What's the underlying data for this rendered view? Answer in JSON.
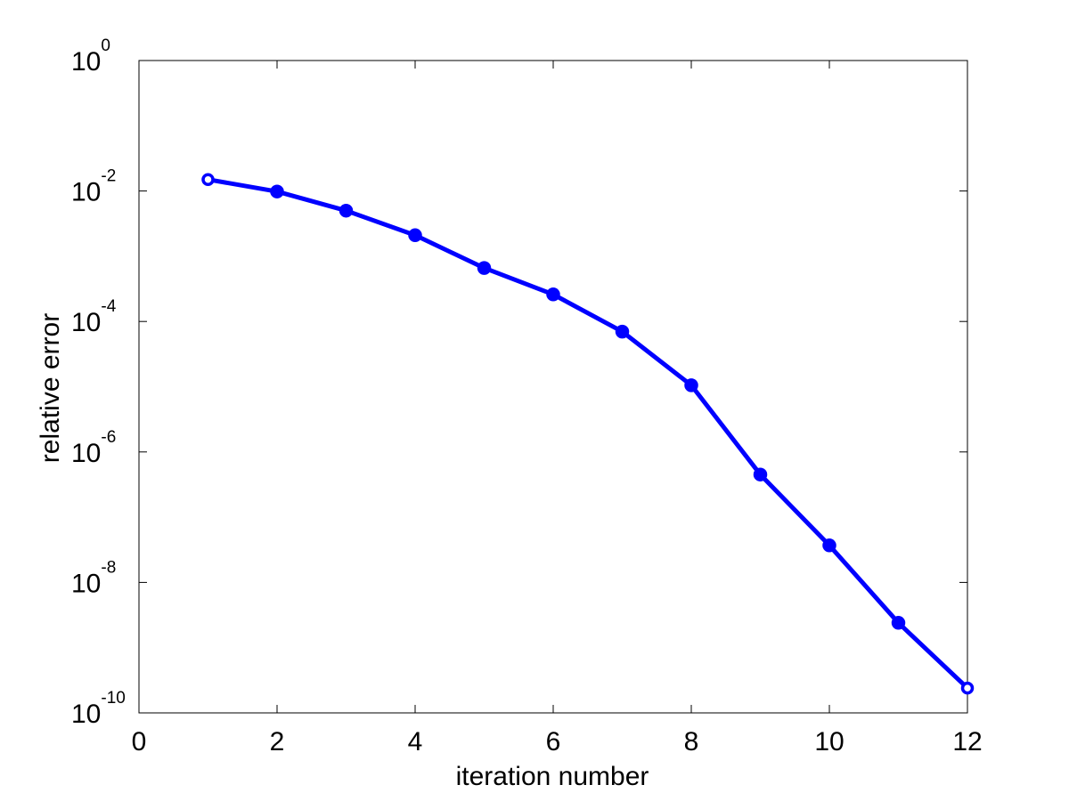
{
  "chart_data": {
    "type": "line",
    "title": "",
    "xlabel": "iteration number",
    "ylabel": "relative error",
    "xlim": [
      0,
      12
    ],
    "ylim": [
      1e-10,
      1
    ],
    "yscale": "log",
    "grid": false,
    "x_ticks": [
      "0",
      "2",
      "4",
      "6",
      "8",
      "10",
      "12"
    ],
    "y_ticks": [
      {
        "base": "10",
        "exp": "0"
      },
      {
        "base": "10",
        "exp": "-2"
      },
      {
        "base": "10",
        "exp": "-4"
      },
      {
        "base": "10",
        "exp": "-6"
      },
      {
        "base": "10",
        "exp": "-8"
      },
      {
        "base": "10",
        "exp": "-10"
      }
    ],
    "series": [
      {
        "color": "#0000ff",
        "marker": "circle",
        "x": [
          1,
          2,
          3,
          4,
          5,
          6,
          7,
          8,
          9,
          10,
          11,
          12
        ],
        "y": [
          0.015,
          0.0098,
          0.005,
          0.0021,
          0.00066,
          0.00026,
          7e-05,
          1.05e-05,
          4.5e-07,
          3.7e-08,
          2.4e-09,
          2.4e-10
        ]
      }
    ]
  }
}
